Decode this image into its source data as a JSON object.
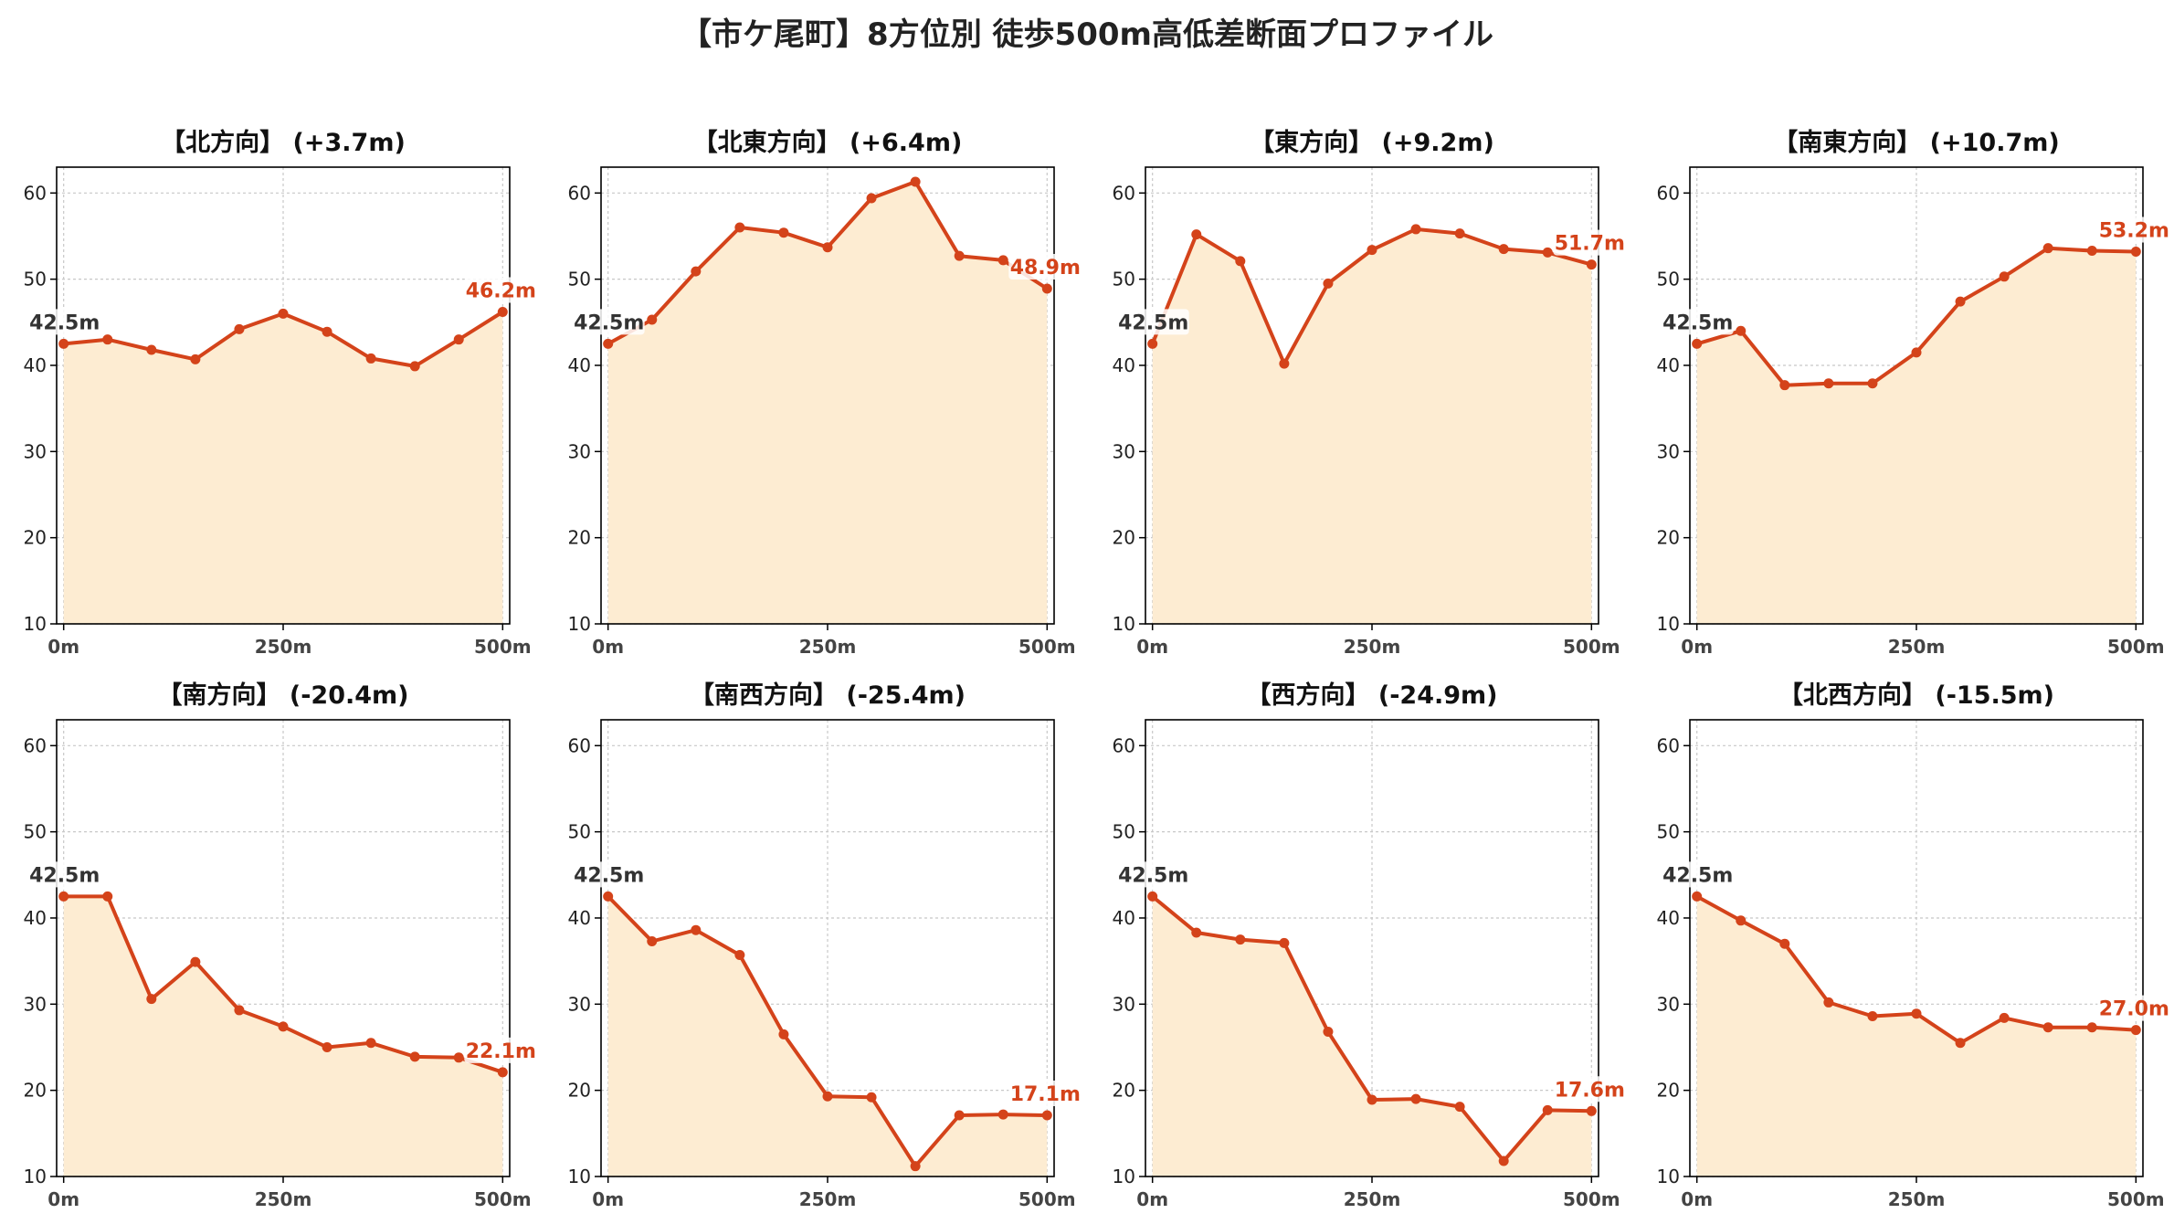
{
  "title": "【市ケ尾町】8方位別 徒歩500m高低差断面プロファイル",
  "colors": {
    "line": "#d4431a",
    "fill": "#fdecd2",
    "start_label": "#333333",
    "end_label": "#d4431a",
    "grid": "#c8c8c8"
  },
  "chart_data": [
    {
      "type": "area",
      "title": "【北方向】 (+3.7m)",
      "x": [
        0,
        50,
        100,
        150,
        200,
        250,
        300,
        350,
        400,
        450,
        500
      ],
      "values": [
        42.5,
        43.0,
        41.8,
        40.7,
        44.2,
        46.0,
        43.9,
        40.8,
        39.9,
        43.0,
        46.2
      ],
      "start_label": "42.5m",
      "end_label": "46.2m",
      "xticks": [
        0,
        250,
        500
      ],
      "xtick_labels": [
        "0m",
        "250m",
        "500m"
      ],
      "yticks": [
        10,
        20,
        30,
        40,
        50,
        60
      ],
      "ylim": [
        10,
        63
      ],
      "xlim": [
        -8,
        508
      ],
      "grid": true
    },
    {
      "type": "area",
      "title": "【北東方向】 (+6.4m)",
      "x": [
        0,
        50,
        100,
        150,
        200,
        250,
        300,
        350,
        400,
        450,
        500
      ],
      "values": [
        42.5,
        45.3,
        50.9,
        56.0,
        55.4,
        53.7,
        59.4,
        61.3,
        52.7,
        52.2,
        48.9
      ],
      "start_label": "42.5m",
      "end_label": "48.9m",
      "xticks": [
        0,
        250,
        500
      ],
      "xtick_labels": [
        "0m",
        "250m",
        "500m"
      ],
      "yticks": [
        10,
        20,
        30,
        40,
        50,
        60
      ],
      "ylim": [
        10,
        63
      ],
      "xlim": [
        -8,
        508
      ],
      "grid": true
    },
    {
      "type": "area",
      "title": "【東方向】 (+9.2m)",
      "x": [
        0,
        50,
        100,
        150,
        200,
        250,
        300,
        350,
        400,
        450,
        500
      ],
      "values": [
        42.5,
        55.2,
        52.1,
        40.2,
        49.5,
        53.4,
        55.8,
        55.3,
        53.5,
        53.1,
        51.7
      ],
      "start_label": "42.5m",
      "end_label": "51.7m",
      "xticks": [
        0,
        250,
        500
      ],
      "xtick_labels": [
        "0m",
        "250m",
        "500m"
      ],
      "yticks": [
        10,
        20,
        30,
        40,
        50,
        60
      ],
      "ylim": [
        10,
        63
      ],
      "xlim": [
        -8,
        508
      ],
      "grid": true
    },
    {
      "type": "area",
      "title": "【南東方向】 (+10.7m)",
      "x": [
        0,
        50,
        100,
        150,
        200,
        250,
        300,
        350,
        400,
        450,
        500
      ],
      "values": [
        42.5,
        44.0,
        37.7,
        37.9,
        37.9,
        41.5,
        47.4,
        50.3,
        53.6,
        53.3,
        53.2
      ],
      "start_label": "42.5m",
      "end_label": "53.2m",
      "xticks": [
        0,
        250,
        500
      ],
      "xtick_labels": [
        "0m",
        "250m",
        "500m"
      ],
      "yticks": [
        10,
        20,
        30,
        40,
        50,
        60
      ],
      "ylim": [
        10,
        63
      ],
      "xlim": [
        -8,
        508
      ],
      "grid": true
    },
    {
      "type": "area",
      "title": "【南方向】 (-20.4m)",
      "x": [
        0,
        50,
        100,
        150,
        200,
        250,
        300,
        350,
        400,
        450,
        500
      ],
      "values": [
        42.5,
        42.5,
        30.6,
        34.9,
        29.3,
        27.4,
        25.0,
        25.5,
        23.9,
        23.8,
        22.1
      ],
      "start_label": "42.5m",
      "end_label": "22.1m",
      "xticks": [
        0,
        250,
        500
      ],
      "xtick_labels": [
        "0m",
        "250m",
        "500m"
      ],
      "yticks": [
        10,
        20,
        30,
        40,
        50,
        60
      ],
      "ylim": [
        10,
        63
      ],
      "xlim": [
        -8,
        508
      ],
      "grid": true
    },
    {
      "type": "area",
      "title": "【南西方向】 (-25.4m)",
      "x": [
        0,
        50,
        100,
        150,
        200,
        250,
        300,
        350,
        400,
        450,
        500
      ],
      "values": [
        42.5,
        37.3,
        38.6,
        35.7,
        26.5,
        19.3,
        19.2,
        11.2,
        17.1,
        17.2,
        17.1
      ],
      "start_label": "42.5m",
      "end_label": "17.1m",
      "xticks": [
        0,
        250,
        500
      ],
      "xtick_labels": [
        "0m",
        "250m",
        "500m"
      ],
      "yticks": [
        10,
        20,
        30,
        40,
        50,
        60
      ],
      "ylim": [
        10,
        63
      ],
      "xlim": [
        -8,
        508
      ],
      "grid": true
    },
    {
      "type": "area",
      "title": "【西方向】 (-24.9m)",
      "x": [
        0,
        50,
        100,
        150,
        200,
        250,
        300,
        350,
        400,
        450,
        500
      ],
      "values": [
        42.5,
        38.3,
        37.5,
        37.1,
        26.8,
        18.9,
        19.0,
        18.1,
        11.8,
        17.7,
        17.6
      ],
      "start_label": "42.5m",
      "end_label": "17.6m",
      "xticks": [
        0,
        250,
        500
      ],
      "xtick_labels": [
        "0m",
        "250m",
        "500m"
      ],
      "yticks": [
        10,
        20,
        30,
        40,
        50,
        60
      ],
      "ylim": [
        10,
        63
      ],
      "xlim": [
        -8,
        508
      ],
      "grid": true
    },
    {
      "type": "area",
      "title": "【北西方向】 (-15.5m)",
      "x": [
        0,
        50,
        100,
        150,
        200,
        250,
        300,
        350,
        400,
        450,
        500
      ],
      "values": [
        42.5,
        39.7,
        37.0,
        30.2,
        28.6,
        28.9,
        25.5,
        28.4,
        27.3,
        27.3,
        27.0
      ],
      "start_label": "42.5m",
      "end_label": "27.0m",
      "xticks": [
        0,
        250,
        500
      ],
      "xtick_labels": [
        "0m",
        "250m",
        "500m"
      ],
      "yticks": [
        10,
        20,
        30,
        40,
        50,
        60
      ],
      "ylim": [
        10,
        63
      ],
      "xlim": [
        -8,
        508
      ],
      "grid": true
    }
  ]
}
